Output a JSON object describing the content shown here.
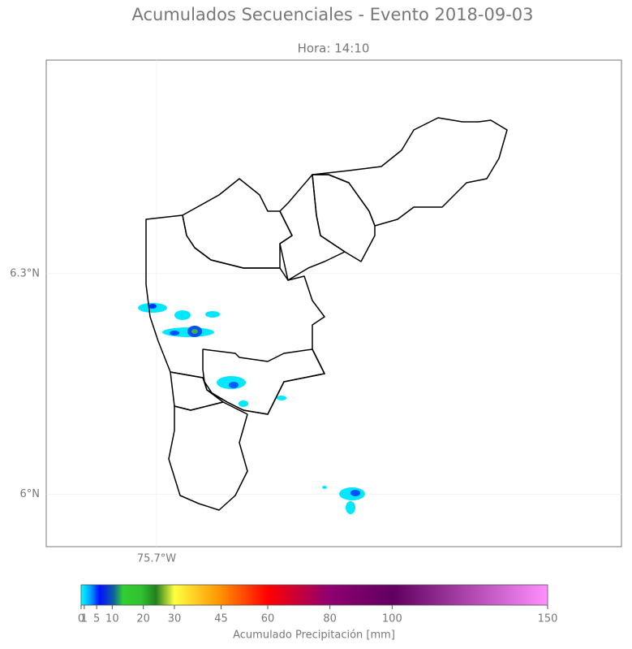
{
  "chart_data": {
    "type": "map",
    "title": "Acumulados Secuenciales - Evento 2018-09-03",
    "subtitle": "Hora: 14:10",
    "xlim": [
      -75.85,
      -75.068
    ],
    "ylim": [
      5.929,
      6.59
    ],
    "xticks": [
      {
        "value": -75.7,
        "label": "75.7°W"
      }
    ],
    "yticks": [
      {
        "value": 6,
        "label": "6°N"
      },
      {
        "value": 6.3,
        "label": "6.3°N"
      }
    ],
    "grid": true,
    "colorbar": {
      "label": "Acumulado Precipitación [mm]",
      "lim": [
        0,
        150
      ],
      "ticks": [
        0,
        1,
        5,
        10,
        20,
        30,
        45,
        60,
        80,
        100,
        150
      ]
    }
  }
}
